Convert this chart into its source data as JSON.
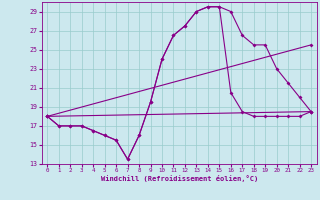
{
  "xlabel": "Windchill (Refroidissement éolien,°C)",
  "background_color": "#cce8ee",
  "grid_color": "#99cccc",
  "line_color": "#880088",
  "series": {
    "line1_x": [
      0,
      1,
      2,
      3,
      4,
      5,
      6,
      7,
      8,
      9,
      10,
      11,
      12,
      13,
      14,
      15,
      16,
      17,
      18,
      19,
      20,
      21,
      22,
      23
    ],
    "line1_y": [
      18,
      17,
      17,
      17,
      16.5,
      16,
      15.5,
      13.5,
      16,
      19.5,
      24,
      26.5,
      27.5,
      29,
      29.5,
      29.5,
      29,
      26.5,
      25.5,
      25.5,
      23,
      21.5,
      20,
      18.5
    ],
    "line2_x": [
      0,
      1,
      2,
      3,
      4,
      5,
      6,
      7,
      8,
      9,
      10,
      11,
      12,
      13,
      14,
      15,
      16,
      17,
      18,
      19,
      20,
      21,
      22,
      23
    ],
    "line2_y": [
      18,
      17,
      17,
      17,
      16.5,
      16,
      15.5,
      13.5,
      16,
      19.5,
      24,
      26.5,
      27.5,
      29,
      29.5,
      29.5,
      20.5,
      18.5,
      18,
      18,
      18,
      18,
      18,
      18.5
    ],
    "line3_x": [
      0,
      23
    ],
    "line3_y": [
      18,
      25.5
    ],
    "line4_x": [
      0,
      23
    ],
    "line4_y": [
      18,
      18.5
    ]
  },
  "ylim": [
    13,
    30
  ],
  "xlim": [
    -0.5,
    23.5
  ],
  "yticks": [
    13,
    15,
    17,
    19,
    21,
    23,
    25,
    27,
    29
  ],
  "xticks": [
    0,
    1,
    2,
    3,
    4,
    5,
    6,
    7,
    8,
    9,
    10,
    11,
    12,
    13,
    14,
    15,
    16,
    17,
    18,
    19,
    20,
    21,
    22,
    23
  ]
}
